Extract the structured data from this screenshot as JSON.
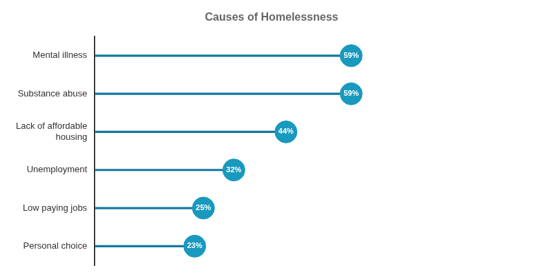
{
  "chart_data": {
    "type": "lollipop",
    "title": "Causes of Homelessness",
    "categories": [
      "Personal choice",
      "Low paying jobs",
      "Unemployment",
      "Lack of affordable\nhousing",
      "Substance abuse",
      "Mental illness"
    ],
    "values": [
      23,
      25,
      32,
      44,
      59,
      59
    ],
    "value_labels": [
      "23%",
      "25%",
      "32%",
      "44%",
      "59%",
      "59%"
    ],
    "color": "#1899be",
    "orientation": "horizontal",
    "xlim": [
      0,
      100
    ],
    "grid": false,
    "tick_labels": "y",
    "data_labels": true
  }
}
